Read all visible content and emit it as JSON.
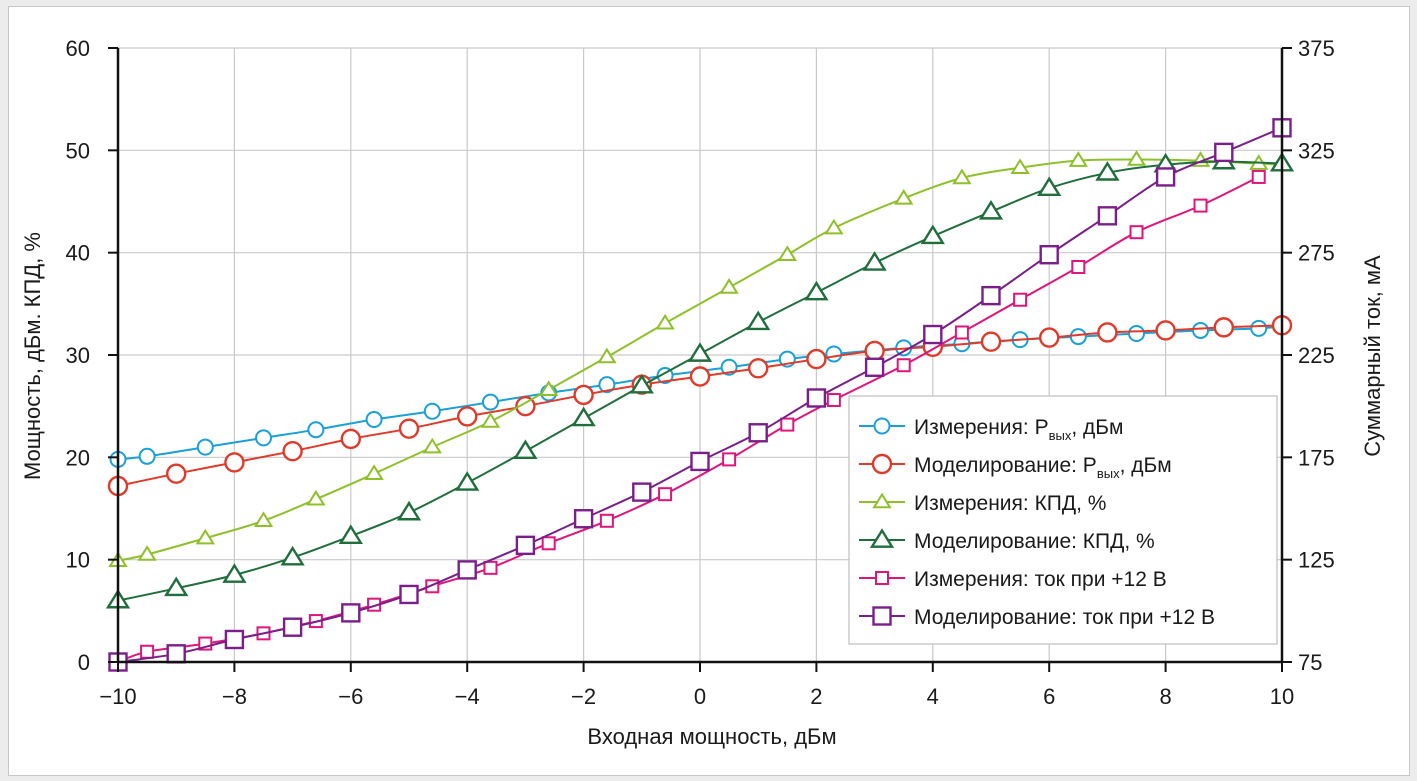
{
  "chart_data": {
    "type": "line",
    "xlabel": "Входная мощность, дБм",
    "ylabel_left": "Мощность, дБм. КПД, %",
    "ylabel_right": "Суммарный ток, мА",
    "xlim": [
      -10,
      10
    ],
    "ylim_left": [
      0,
      60
    ],
    "ylim_right": [
      75,
      375
    ],
    "x_ticks": [
      -10,
      -8,
      -6,
      -4,
      -2,
      0,
      2,
      4,
      6,
      8,
      10
    ],
    "x_tick_labels": [
      "−10",
      "−8",
      "−6",
      "−4",
      "−2",
      "0",
      "2",
      "4",
      "6",
      "8",
      "10"
    ],
    "y_left_ticks": [
      0,
      10,
      20,
      30,
      40,
      50,
      60
    ],
    "y_left_tick_labels": [
      "0",
      "10",
      "20",
      "30",
      "40",
      "50",
      "60"
    ],
    "y_right_ticks": [
      75,
      125,
      175,
      225,
      275,
      325,
      375
    ],
    "y_right_tick_labels": [
      "75",
      "125",
      "175",
      "225",
      "275",
      "325",
      "375"
    ],
    "grid": true,
    "legend_position": "lower-right",
    "series": [
      {
        "name": "Измерения: P",
        "name_sub": "вых",
        "name_suffix": ", дБм",
        "axis": "left",
        "marker": "circle",
        "marker_size": "small",
        "color": "#1aa0d8",
        "x": [
          -10,
          -9.5,
          -8.5,
          -7.5,
          -6.6,
          -5.6,
          -4.6,
          -3.6,
          -2.6,
          -1.6,
          -0.6,
          0.5,
          1.5,
          2.3,
          3.5,
          4.5,
          5.5,
          6.5,
          7.5,
          8.6,
          9.6,
          10
        ],
        "y": [
          19.8,
          20.1,
          21.0,
          21.9,
          22.7,
          23.7,
          24.5,
          25.4,
          26.3,
          27.1,
          28.0,
          28.8,
          29.6,
          30.1,
          30.7,
          31.1,
          31.5,
          31.8,
          32.1,
          32.4,
          32.6,
          32.8
        ]
      },
      {
        "name": "Моделирование: P",
        "name_sub": "вых",
        "name_suffix": ", дБм",
        "axis": "left",
        "marker": "circle",
        "marker_size": "large",
        "color": "#e03a2a",
        "x": [
          -10,
          -9,
          -8,
          -7,
          -6,
          -5,
          -4,
          -3,
          -2,
          -1,
          0,
          1,
          2,
          3,
          4,
          5,
          6,
          7,
          8,
          9,
          10
        ],
        "y": [
          17.2,
          18.4,
          19.5,
          20.6,
          21.8,
          22.8,
          24.0,
          25.0,
          26.1,
          27.1,
          27.9,
          28.7,
          29.6,
          30.4,
          30.8,
          31.3,
          31.7,
          32.2,
          32.4,
          32.7,
          32.9
        ]
      },
      {
        "name": "Измерения: КПД, %",
        "axis": "left",
        "marker": "triangle",
        "marker_size": "small",
        "color": "#8ec02a",
        "x": [
          -10,
          -9.5,
          -8.5,
          -7.5,
          -6.6,
          -5.6,
          -4.6,
          -3.6,
          -2.6,
          -1.6,
          -0.6,
          0.5,
          1.5,
          2.3,
          3.5,
          4.5,
          5.5,
          6.5,
          7.5,
          8.6,
          9.6,
          10
        ],
        "y": [
          9.9,
          10.5,
          12.1,
          13.8,
          15.9,
          18.4,
          21.0,
          23.5,
          26.6,
          29.8,
          33.1,
          36.6,
          39.8,
          42.4,
          45.3,
          47.3,
          48.3,
          49.0,
          49.1,
          49.0,
          48.7,
          48.6
        ]
      },
      {
        "name": "Моделирование: КПД, %",
        "axis": "left",
        "marker": "triangle",
        "marker_size": "large",
        "color": "#1f6e3c",
        "x": [
          -10,
          -9,
          -8,
          -7,
          -6,
          -5,
          -4,
          -3,
          -2,
          -1,
          0,
          1,
          2,
          3,
          4,
          5,
          6,
          7,
          8,
          9,
          10
        ],
        "y": [
          6.0,
          7.2,
          8.5,
          10.2,
          12.3,
          14.6,
          17.5,
          20.6,
          23.8,
          27.0,
          30.1,
          33.2,
          36.1,
          39.0,
          41.6,
          44.0,
          46.3,
          47.8,
          48.6,
          48.9,
          48.7
        ]
      },
      {
        "name": "Измерения: ток при +12 В",
        "axis": "right",
        "marker": "square",
        "marker_size": "small",
        "color": "#e0157a",
        "x": [
          -10,
          -9.5,
          -8.5,
          -7.5,
          -6.6,
          -5.6,
          -4.6,
          -3.6,
          -2.6,
          -1.6,
          -0.6,
          0.5,
          1.5,
          2.3,
          3.5,
          4.5,
          5.5,
          6.5,
          7.5,
          8.6,
          9.6
        ],
        "y": [
          75,
          80,
          84,
          89,
          95,
          103,
          112,
          121,
          133,
          144,
          157,
          174,
          191,
          203,
          220,
          236,
          252,
          268,
          285,
          298,
          312
        ]
      },
      {
        "name": "Моделирование: ток при +12 В",
        "axis": "right",
        "marker": "square",
        "marker_size": "large",
        "color": "#7a1f8a",
        "x": [
          -10,
          -9,
          -8,
          -7,
          -6,
          -5,
          -4,
          -3,
          -2,
          -1,
          0,
          1,
          2,
          3,
          4,
          5,
          6,
          7,
          8,
          9,
          10
        ],
        "y": [
          75,
          79,
          86,
          92,
          99,
          108,
          120,
          132,
          145,
          158,
          173,
          187,
          204,
          219,
          235,
          254,
          274,
          293,
          312,
          324,
          336
        ]
      }
    ]
  }
}
